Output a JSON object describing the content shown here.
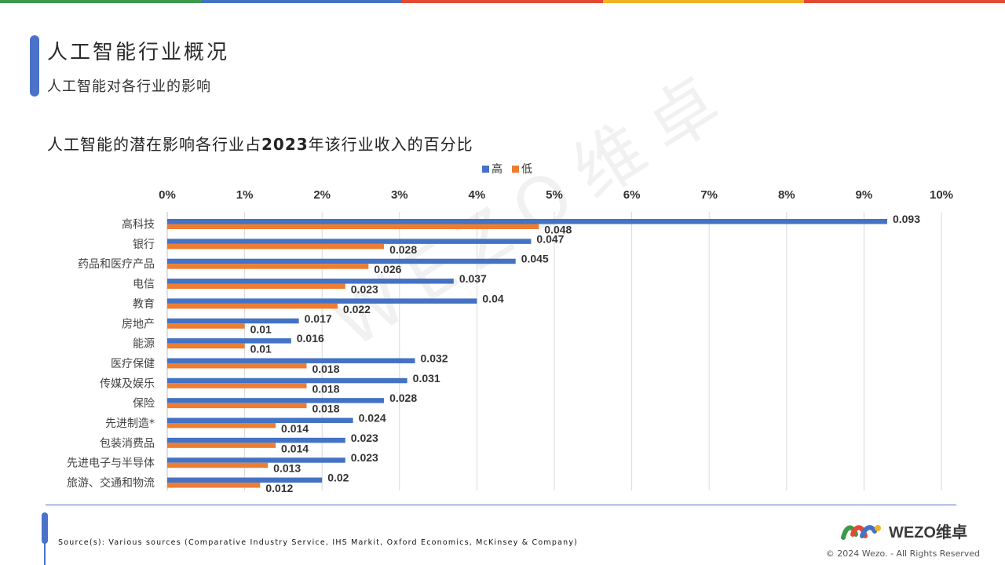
{
  "header": {
    "title": "人工智能行业概况",
    "subtitle": "人工智能对各行业的影响"
  },
  "chart_title": {
    "prefix": "人工智能的潜在影响各行业占",
    "year": "2023",
    "suffix": "年该行业收入的百分比"
  },
  "colors": {
    "accent": "#4a72c8",
    "high": "#4472c4",
    "low": "#ed7d31",
    "top_bar": [
      "#3d9a4a",
      "#4472c4",
      "#e24a33",
      "#f0b323",
      "#e24a33"
    ]
  },
  "chart_data": {
    "type": "bar",
    "orientation": "horizontal",
    "categories": [
      "高科技",
      "银行",
      "药品和医疗产品",
      "电信",
      "教育",
      "房地产",
      "能源",
      "医疗保健",
      "传媒及娱乐",
      "保险",
      "先进制造*",
      "包装消费品",
      "先进电子与半导体",
      "旅游、交通和物流"
    ],
    "series": [
      {
        "name": "高",
        "values": [
          0.093,
          0.047,
          0.045,
          0.037,
          0.04,
          0.017,
          0.016,
          0.032,
          0.031,
          0.028,
          0.024,
          0.023,
          0.023,
          0.02
        ]
      },
      {
        "name": "低",
        "values": [
          0.048,
          0.028,
          0.026,
          0.023,
          0.022,
          0.01,
          0.01,
          0.018,
          0.018,
          0.018,
          0.014,
          0.014,
          0.013,
          0.012
        ]
      }
    ],
    "xlim": [
      0,
      0.1
    ],
    "x_ticks": [
      "0%",
      "1%",
      "2%",
      "3%",
      "4%",
      "5%",
      "6%",
      "7%",
      "8%",
      "9%",
      "10%"
    ],
    "legend": [
      "高",
      "低"
    ],
    "legend_position": "top",
    "x_axis_position": "top",
    "grid": true
  },
  "watermark": "WEZO维卓",
  "footer": {
    "source": "Source(s): Various sources (Comparative Industry Service, IHS Markit, Oxford Economics, McKinsey & Company)",
    "logo_text": "WEZO维卓",
    "copyright": "© 2024 Wezo. - All Rights Reserved"
  }
}
